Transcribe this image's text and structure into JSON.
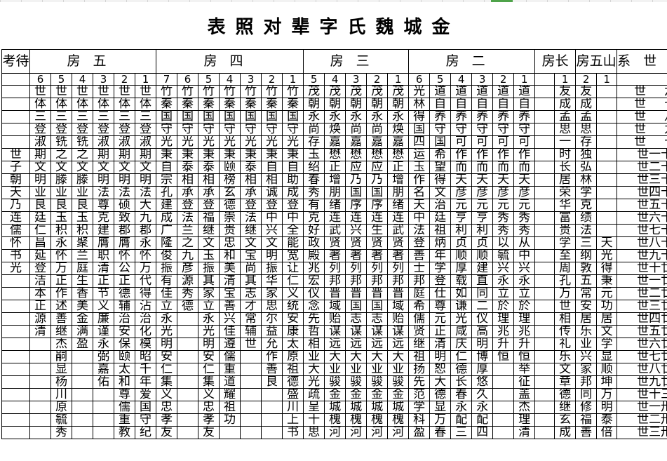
{
  "title": "表照对辈字氏魏城金",
  "colors": {
    "grid": "#000000",
    "selection": "#4fa34a"
  },
  "header": {
    "kaodai": "考待",
    "fang5": "房五",
    "fang4": "房四",
    "fang3": "房三",
    "fang2": "房二",
    "fangzhang": "房长",
    "fangwushan": "房五山",
    "xishi": "系世"
  },
  "subheader": {
    "fang5": [
      "6",
      "5",
      "4",
      "3",
      "2",
      "1"
    ],
    "fang4": [
      "7",
      "6",
      "5",
      "4",
      "3",
      "2",
      "1"
    ],
    "fang3": [
      "5",
      "4",
      "3",
      "2",
      "1"
    ],
    "fang2": [
      "6",
      "5",
      "4",
      "3",
      "2",
      "1"
    ],
    "fangzhang": [
      "",
      "1"
    ],
    "fangwushan": [
      "2",
      "1"
    ]
  },
  "rows": [
    {
      "k": "",
      "f5": [
        "世",
        "世",
        "世",
        "世",
        "世",
        "世"
      ],
      "f4": [
        "竹",
        "竹",
        "竹",
        "竹",
        "竹",
        "竹",
        "竹"
      ],
      "f3": [
        "茂",
        "茂",
        "茂",
        "茂",
        "茂"
      ],
      "f2": [
        "光",
        "道",
        "道",
        "道",
        "道",
        "道"
      ],
      "fz": [
        "",
        "友"
      ],
      "fw": [
        "友",
        ""
      ],
      "x": "世六"
    },
    {
      "k": "",
      "f5": [
        "体",
        "体",
        "体",
        "体",
        "体",
        "体"
      ],
      "f4": [
        "秦",
        "秦",
        "秦",
        "秦",
        "秦",
        "秦",
        "秦"
      ],
      "f3": [
        "朝",
        "朝",
        "朝",
        "朝",
        "朝"
      ],
      "f2": [
        "林",
        "自",
        "自",
        "自",
        "自",
        "自"
      ],
      "fz": [
        "",
        "成"
      ],
      "fw": [
        "成",
        ""
      ],
      "x": "世七"
    },
    {
      "k": "",
      "f5": [
        "三",
        "三",
        "三",
        "三",
        "三",
        "三"
      ],
      "f4": [
        "国",
        "国",
        "国",
        "国",
        "国",
        "国",
        "国"
      ],
      "f3": [
        "永",
        "永",
        "永",
        "永",
        "永"
      ],
      "f2": [
        "得",
        "养",
        "养",
        "养",
        "养",
        "养"
      ],
      "fz": [
        "",
        "孟"
      ],
      "fw": [
        "孟",
        ""
      ],
      "x": "世八"
    },
    {
      "k": "",
      "f5": [
        "登",
        "登",
        "登",
        "登",
        "登",
        "登"
      ],
      "f4": [
        "守",
        "守",
        "守",
        "守",
        "守",
        "守",
        "守"
      ],
      "f3": [
        "尚",
        "焕",
        "尚",
        "尚",
        "焕"
      ],
      "f2": [
        "国",
        "守",
        "守",
        "守",
        "守",
        "守"
      ],
      "fz": [
        "",
        "思"
      ],
      "fw": [
        "思",
        ""
      ],
      "x": "世九"
    },
    {
      "k": "",
      "f5": [
        "淑",
        "铣",
        "铣",
        "淑",
        "淑",
        "淑"
      ],
      "f4": [
        "光",
        "光",
        "光",
        "光",
        "光",
        "光",
        "光"
      ],
      "f3": [
        "存",
        "嘉",
        "嘉",
        "嘉",
        "嘉"
      ],
      "f2": [
        "四",
        "国",
        "可",
        "可",
        "可",
        "可"
      ],
      "fz": [
        "",
        "一"
      ],
      "fw": [
        "存",
        ""
      ],
      "x": "世十"
    },
    {
      "k": "世",
      "f5": [
        "期",
        "之",
        "之",
        "期",
        "期",
        "期"
      ],
      "f4": [
        "秉",
        "秉",
        "秉",
        "秉",
        "秉",
        "秉",
        "秉"
      ],
      "f3": [
        "玉",
        "懋",
        "懋",
        "懋",
        "懋"
      ],
      "f2": [
        "运",
        "希",
        "作",
        "作",
        "作",
        "作"
      ],
      "fz": [
        "",
        "时"
      ],
      "fw": [
        "独",
        ""
      ],
      "x": "世一十"
    },
    {
      "k": "子",
      "f5": [
        "文",
        "文",
        "文",
        "文",
        "文",
        "文"
      ],
      "f4": [
        "自",
        "泰",
        "泰",
        "颐",
        "泰",
        "自",
        "自"
      ],
      "f3": [
        "绍",
        "正",
        "应",
        "应",
        "正"
      ],
      "f2": [
        "玉",
        "望",
        "而",
        "而",
        "而",
        "而"
      ],
      "fz": [
        "",
        "长"
      ],
      "fw": [
        "弘",
        ""
      ],
      "x": "世二十"
    },
    {
      "k": "朝",
      "f5": [
        "明",
        "滕",
        "滕",
        "明",
        "明",
        "明"
      ],
      "f4": [
        "宗",
        "相",
        "相",
        "榜",
        "相",
        "相",
        "助"
      ],
      "f3": [
        "春",
        "增",
        "乃",
        "乃",
        "增"
      ],
      "f2": [
        "作",
        "得",
        "天",
        "天",
        "天",
        "天"
      ],
      "fz": [
        "",
        "居"
      ],
      "fw": [
        "林",
        ""
      ],
      "x": "世三十"
    },
    {
      "k": "天",
      "f5": [
        "业",
        "业",
        "业",
        "法",
        "法",
        "法"
      ],
      "f4": [
        "孔",
        "承",
        "承",
        "玄",
        "承",
        "诚",
        "成"
      ],
      "f3": [
        "秀",
        "朋",
        "国",
        "国",
        "朋"
      ],
      "f2": [
        "名",
        "文",
        "彦",
        "彦",
        "彦",
        "彦"
      ],
      "fz": [
        "",
        "荣"
      ],
      "fw": [
        "学",
        ""
      ],
      "x": "世四十"
    },
    {
      "k": "乃",
      "f5": [
        "良",
        "良",
        "良",
        "尊",
        "硕",
        "大"
      ],
      "f4": [
        "建",
        "登",
        "登",
        "德",
        "登",
        "登",
        "登"
      ],
      "f3": [
        "有",
        "绪",
        "序",
        "序",
        "绪"
      ],
      "f2": [
        "天",
        "治",
        "元",
        "元",
        "元",
        "元"
      ],
      "fz": [
        "",
        "华"
      ],
      "fw": [
        "克",
        ""
      ],
      "x": "世五十"
    },
    {
      "k": "连",
      "f5": [
        "廷",
        "玉",
        "玉",
        "克",
        "致",
        "九"
      ],
      "f4": [
        "成",
        "法",
        "福",
        "崇",
        "法",
        "中",
        "中"
      ],
      "f3": [
        "克",
        "连",
        "连",
        "连",
        "连"
      ],
      "f2": [
        "中",
        "廷",
        "亨",
        "亨",
        "秀",
        "秀"
      ],
      "fz": [
        "",
        "富"
      ],
      "fw": [
        "绩",
        ""
      ],
      "x": "世六十"
    },
    {
      "k": "儒",
      "f5": [
        "仁",
        "积",
        "积",
        "建",
        "郡",
        "郡"
      ],
      "f4": [
        "广",
        "兰",
        "继",
        "贵",
        "继",
        "兴",
        "全"
      ],
      "f3": [
        "好",
        "武",
        "兴",
        "生",
        "武"
      ],
      "f2": [
        "法",
        "祖",
        "利",
        "利",
        "秀",
        "秀"
      ],
      "fz": [
        "",
        "贵"
      ],
      "fw": [
        "法",
        ""
      ],
      "x": "世七十"
    },
    {
      "k": "怀",
      "f5": [
        "昌",
        "永",
        "聚",
        "膺",
        "膺",
        "永"
      ],
      "f4": [
        "隆",
        "之",
        "文",
        "忠",
        "文",
        "文",
        "能"
      ],
      "f3": [
        "政",
        "贤",
        "贤",
        "贤",
        "贤"
      ],
      "f2": [
        "登",
        "炳",
        "贞",
        "贞",
        "以",
        "从"
      ],
      "fz": [
        "",
        "学"
      ],
      "fw": [
        "三",
        "天"
      ],
      "x": "世八十"
    },
    {
      "k": "书",
      "f5": [
        "延",
        "怀",
        "兰",
        "职",
        "怀",
        "怀"
      ],
      "f4": [
        "俊",
        "九",
        "玉",
        "和",
        "宝",
        "明",
        "宽"
      ],
      "f3": [
        "殿",
        "著",
        "著",
        "著",
        "著"
      ],
      "f2": [
        "善",
        "年",
        "顺",
        "顺",
        "毓",
        "中"
      ],
      "fz": [
        "",
        "至"
      ],
      "fw": [
        "纲",
        "光"
      ],
      "x": "世九十"
    },
    {
      "k": "光",
      "f5": [
        "登",
        "万",
        "庭",
        "清",
        "公",
        "万"
      ],
      "f4": [
        "振",
        "彦",
        "振",
        "美",
        "尚",
        "振",
        "让"
      ],
      "f3": [
        "兆",
        "列",
        "列",
        "列",
        "列"
      ],
      "f2": [
        "士",
        "学",
        "厚",
        "建",
        "兴",
        "兴"
      ],
      "fz": [
        "",
        "周"
      ],
      "fw": [
        "敦",
        "得"
      ],
      "x": "世十廿"
    },
    {
      "k": "",
      "f5": [
        "洁",
        "正",
        "生",
        "正",
        "正",
        "代"
      ],
      "f4": [
        "有",
        "源",
        "其",
        "清",
        "其",
        "华",
        "仁"
      ],
      "f3": [
        "宏",
        "邦",
        "邦",
        "邦",
        "邦"
      ],
      "f2": [
        "邦",
        "登",
        "载",
        "直",
        "永",
        "永"
      ],
      "fz": [
        "",
        "孔"
      ],
      "fw": [
        "五",
        "秉"
      ],
      "x": "世一廿"
    },
    {
      "k": "",
      "f5": [
        "本",
        "作",
        "香",
        "节",
        "德",
        "得"
      ],
      "f4": [
        "佳",
        "秀",
        "家",
        "宝",
        "志",
        "家",
        "义"
      ],
      "f3": [
        "仪",
        "晋",
        "晋",
        "晋",
        "晋"
      ],
      "f2": [
        "庭",
        "仕",
        "如",
        "同",
        "立",
        "立"
      ],
      "fz": [
        "",
        "万"
      ],
      "fw": [
        "常",
        "元"
      ],
      "x": "世二廿"
    },
    {
      "k": "",
      "f5": [
        "正",
        "述",
        "美",
        "义",
        "辅",
        "沾"
      ],
      "f4": [
        "立",
        "德",
        "立",
        "善",
        "才",
        "思",
        "统"
      ],
      "f3": [
        "念",
        "域",
        "国",
        "国",
        "域"
      ],
      "f2": [
        "希",
        "尊",
        "谦",
        "二",
        "於",
        "於"
      ],
      "fz": [
        "",
        "世"
      ],
      "fw": [
        "安",
        "功"
      ],
      "x": "世三廿"
    },
    {
      "k": "",
      "f5": [
        "源",
        "善",
        "金",
        "廉",
        "治",
        "治"
      ],
      "f4": [
        "永",
        "",
        "永",
        "兴",
        "常",
        "尔",
        "安"
      ],
      "f3": [
        "先",
        "贻",
        "志",
        "志",
        "贻"
      ],
      "f2": [
        "儒",
        "元",
        "光",
        "仪",
        "理",
        "理"
      ],
      "fz": [
        "",
        "相"
      ],
      "fw": [
        "居",
        "居"
      ],
      "x": "世四廿"
    },
    {
      "k": "",
      "f5": [
        "清",
        "继",
        "满",
        "谨",
        "安",
        "化"
      ],
      "f4": [
        "光",
        "",
        "光",
        "佳",
        "辅",
        "益",
        "康"
      ],
      "f3": [
        "哲",
        "谋",
        "谋",
        "谋",
        "谋"
      ],
      "f2": [
        "贤",
        "正",
        "咸",
        "高",
        "兆",
        "兆"
      ],
      "fz": [
        "",
        "传"
      ],
      "fw": [
        "乐",
        "文"
      ],
      "x": "世五廿"
    },
    {
      "k": "",
      "f5": [
        "",
        "杰",
        "盈",
        "永",
        "保",
        "模"
      ],
      "f4": [
        "明",
        "",
        "明",
        "遵",
        "世",
        "允",
        "太"
      ],
      "f3": [
        "相",
        "远",
        "远",
        "远",
        "远"
      ],
      "f2": [
        "继",
        "清",
        "庆",
        "明",
        "升",
        "升"
      ],
      "fz": [
        "",
        "礼"
      ],
      "fw": [
        "业",
        "学"
      ],
      "x": "世六廿"
    },
    {
      "k": "",
      "f5": [
        "",
        "嗣",
        "",
        "弼",
        "颐",
        "昭"
      ],
      "f4": [
        "安",
        "",
        "安",
        "儒",
        "",
        "作",
        "原"
      ],
      "f3": [
        "业",
        "大",
        "大",
        "大",
        "大"
      ],
      "f2": [
        "祖",
        "明",
        "仁",
        "博",
        "恒",
        "恒"
      ],
      "fz": [
        "",
        "乐"
      ],
      "fw": [
        "兴",
        "显"
      ],
      "x": "世七廿"
    },
    {
      "k": "",
      "f5": [
        "",
        "显",
        "",
        "嘉",
        "太",
        "千"
      ],
      "f4": [
        "仁",
        "",
        "仁",
        "重",
        "",
        "善",
        "祖"
      ],
      "f3": [
        "大",
        "业",
        "业",
        "业",
        "业"
      ],
      "f2": [
        "扬",
        "恕",
        "德",
        "厚",
        "",
        "举"
      ],
      "fz": [
        "",
        "文"
      ],
      "fw": [
        "家",
        "顺"
      ],
      "x": "世八廿"
    },
    {
      "k": "",
      "f5": [
        "",
        "杨",
        "",
        "佑",
        "和",
        "年"
      ],
      "f4": [
        "集",
        "",
        "集",
        "道",
        "",
        "良",
        "德"
      ],
      "f3": [
        "光",
        "骏",
        "骏",
        "骏",
        "骏"
      ],
      "f2": [
        "先",
        "大",
        "长",
        "悠",
        "",
        "征"
      ],
      "fz": [
        "",
        "章"
      ],
      "fw": [
        "邦",
        "坤"
      ],
      "x": "世九廿"
    },
    {
      "k": "",
      "f5": [
        "",
        "川",
        "",
        "",
        "尊",
        "爱"
      ],
      "f4": [
        "义",
        "",
        "义",
        "耀",
        "",
        "",
        "盛"
      ],
      "f3": [
        "疏",
        "金",
        "金",
        "金",
        "金"
      ],
      "f2": [
        "范",
        "德",
        "春",
        "久",
        "",
        "盖"
      ],
      "fz": [
        "",
        "德"
      ],
      "fw": [
        "同",
        "万"
      ],
      "x": "世十三"
    },
    {
      "k": "",
      "f5": [
        "",
        "原",
        "",
        "",
        "儒",
        "国"
      ],
      "f4": [
        "忠",
        "",
        "忠",
        "祖",
        "",
        "",
        "川"
      ],
      "f3": [
        "呈",
        "城",
        "城",
        "城",
        "城"
      ],
      "f2": [
        "学",
        "显",
        "永",
        "永",
        "",
        "杰"
      ],
      "fz": [
        "",
        "继"
      ],
      "fw": [
        "修",
        "明"
      ],
      "x": "世一卅"
    },
    {
      "k": "",
      "f5": [
        "",
        "毓",
        "",
        "",
        "重",
        "守"
      ],
      "f4": [
        "孝",
        "",
        "孝",
        "功",
        "",
        "",
        "上"
      ],
      "f3": [
        "十",
        "槐",
        "槐",
        "槐",
        "槐"
      ],
      "f2": [
        "科",
        "万",
        "配",
        "配",
        "",
        "理"
      ],
      "fz": [
        "",
        "玄"
      ],
      "fw": [
        "福",
        "泰"
      ],
      "x": "世二卅"
    },
    {
      "k": "",
      "f5": [
        "",
        "秀",
        "",
        "",
        "教",
        "纪"
      ],
      "f4": [
        "友",
        "",
        "友",
        "",
        "",
        "",
        "书"
      ],
      "f3": [
        "思",
        "河",
        "河",
        "河",
        "河"
      ],
      "f2": [
        "盈",
        "春",
        "三",
        "四",
        "",
        "清"
      ],
      "fz": [
        "",
        "成"
      ],
      "fw": [
        "善",
        "倍"
      ],
      "x": "世三卅"
    }
  ]
}
